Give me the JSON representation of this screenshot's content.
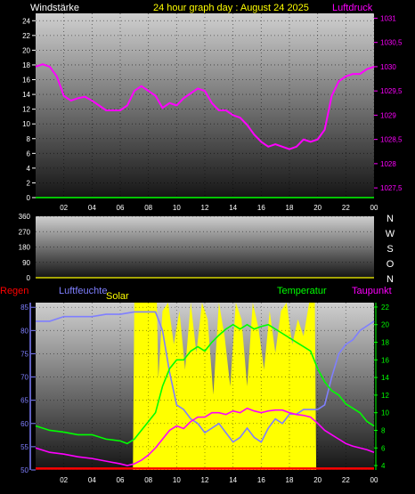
{
  "header": {
    "left": "Windstärke",
    "center": "24 hour graph day : August 24 2025",
    "right": "Luftdruck"
  },
  "colors": {
    "wind": "#ffffff",
    "pressure": "#ff00ff",
    "humidity": "#7f7fff",
    "temperature": "#00ff00",
    "dewpoint": "#ff00ff",
    "rain": "#ff0000",
    "solar": "#ffff00",
    "header_center": "#ffff00",
    "axis": "#000000"
  },
  "chart_data": [
    {
      "type": "line",
      "id": "wind_pressure",
      "x_tick_labels": [
        "02",
        "04",
        "06",
        "08",
        "10",
        "12",
        "14",
        "16",
        "18",
        "20",
        "22",
        "00"
      ],
      "x_range": [
        0,
        24
      ],
      "ylabel_left": "Windstärke",
      "ylim_left": [
        0,
        25
      ],
      "y_ticks_left": [
        "24",
        "22",
        "20",
        "18",
        "16",
        "14",
        "12",
        "10",
        "8",
        "6",
        "4",
        "2",
        "0"
      ],
      "ylabel_right": "Luftdruck",
      "ylim_right": [
        1027.3,
        1031.1
      ],
      "y_ticks_right": [
        {
          "v": 1031,
          "t": "1031"
        },
        {
          "v": 1030.5,
          "t": "1030,5"
        },
        {
          "v": 1030,
          "t": "1030"
        },
        {
          "v": 1029.5,
          "t": "1029,5"
        },
        {
          "v": 1029,
          "t": "1029"
        },
        {
          "v": 1028.5,
          "t": "1028,5"
        },
        {
          "v": 1028,
          "t": "1028"
        },
        {
          "v": 1027.5,
          "t": "1027,5"
        }
      ],
      "series": [
        {
          "axis": "right",
          "color": "#ff00ff",
          "x": [
            0,
            0.5,
            1,
            1.5,
            2,
            2.5,
            3,
            3.5,
            4,
            4.5,
            5,
            5.5,
            6,
            6.5,
            7,
            7.5,
            8,
            8.5,
            9,
            9.5,
            10,
            10.5,
            11,
            11.5,
            12,
            12.5,
            13,
            13.5,
            14,
            14.5,
            15,
            15.5,
            16,
            16.5,
            17,
            17.5,
            18,
            18.5,
            19,
            19.5,
            20,
            20.5,
            21,
            21.5,
            22,
            22.5,
            23,
            23.5,
            24
          ],
          "y": [
            1030,
            1030.05,
            1030,
            1029.8,
            1029.4,
            1029.3,
            1029.35,
            1029.38,
            1029.3,
            1029.2,
            1029.1,
            1029.1,
            1029.1,
            1029.2,
            1029.5,
            1029.6,
            1029.5,
            1029.4,
            1029.15,
            1029.25,
            1029.2,
            1029.35,
            1029.45,
            1029.55,
            1029.5,
            1029.25,
            1029.1,
            1029.1,
            1029,
            1028.95,
            1028.8,
            1028.6,
            1028.45,
            1028.35,
            1028.4,
            1028.35,
            1028.3,
            1028.35,
            1028.5,
            1028.45,
            1028.5,
            1028.7,
            1029.4,
            1029.7,
            1029.8,
            1029.85,
            1029.85,
            1029.95,
            1030
          ]
        },
        {
          "axis": "left",
          "color": "#00ff00",
          "x": [
            0,
            24
          ],
          "y": [
            0,
            0
          ]
        }
      ]
    },
    {
      "type": "line",
      "id": "wind_direction",
      "ylim": [
        0,
        360
      ],
      "y_ticks": [
        "360",
        "270",
        "180",
        "90",
        "0"
      ],
      "direction_labels": [
        "N",
        "W",
        "S",
        "O",
        "N"
      ],
      "series": []
    },
    {
      "type": "line",
      "id": "humidity_temperature",
      "ylabel_left": "Luftfeuchte",
      "label_left_outer": "Regen",
      "label_solar": "Solar",
      "ylabel_right": "Temperatur",
      "ylabel_right2": "Taupunkt",
      "ylim_left": [
        50,
        86
      ],
      "y_ticks_left": [
        "85",
        "80",
        "75",
        "70",
        "65",
        "60",
        "55",
        "50"
      ],
      "ylim_right": [
        3.5,
        22.5
      ],
      "y_ticks_right": [
        "22",
        "20",
        "18",
        "16",
        "14",
        "12",
        "10",
        "8",
        "6",
        "4"
      ],
      "series": [
        {
          "name": "Luftfeuchte",
          "axis": "left",
          "color": "#7f7fff",
          "x": [
            0,
            1,
            2,
            3,
            4,
            5,
            6,
            7,
            7.5,
            8,
            8.5,
            9,
            9.5,
            10,
            10.5,
            11,
            11.5,
            12,
            12.5,
            13,
            13.5,
            14,
            14.5,
            15,
            15.5,
            16,
            16.5,
            17,
            17.5,
            18,
            18.5,
            19,
            19.5,
            20,
            20.5,
            21,
            21.5,
            22,
            22.5,
            23,
            23.5,
            24
          ],
          "y": [
            82,
            82,
            83,
            83,
            83,
            83.5,
            83.5,
            84,
            84,
            84,
            84,
            80,
            71,
            64,
            63,
            61,
            60,
            58,
            59,
            60,
            58,
            56,
            57,
            59,
            57,
            56,
            59,
            61,
            60,
            62,
            62,
            63,
            63,
            63,
            64,
            70,
            75,
            77,
            78,
            80,
            81,
            82
          ]
        },
        {
          "name": "Temperatur",
          "axis": "right",
          "color": "#00ff00",
          "x": [
            0,
            1,
            2,
            3,
            4,
            5,
            6,
            6.5,
            7,
            7.5,
            8,
            8.5,
            9,
            9.5,
            10,
            10.5,
            11,
            11.5,
            12,
            12.5,
            13,
            13.5,
            14,
            14.5,
            15,
            15.5,
            16,
            16.5,
            17,
            17.5,
            18,
            18.5,
            19,
            19.5,
            20,
            20.5,
            21,
            21.5,
            22,
            22.5,
            23,
            23.5,
            24
          ],
          "y": [
            8.5,
            8,
            7.8,
            7.5,
            7.5,
            7,
            6.8,
            6.5,
            7,
            8,
            9,
            10,
            13,
            15,
            16,
            16,
            17,
            17.5,
            17,
            18,
            18.8,
            19.5,
            20,
            19.5,
            20,
            19.5,
            19.8,
            20,
            19.5,
            19,
            18.5,
            18,
            17.5,
            17,
            15,
            13.5,
            12.5,
            12,
            11,
            10.5,
            10,
            9,
            8.5
          ]
        },
        {
          "name": "Taupunkt",
          "axis": "right",
          "color": "#ff00ff",
          "x": [
            0,
            1,
            2,
            3,
            4,
            5,
            6,
            6.5,
            7,
            7.5,
            8,
            8.5,
            9,
            9.5,
            10,
            10.5,
            11,
            11.5,
            12,
            12.5,
            13,
            13.5,
            14,
            14.5,
            15,
            15.5,
            16,
            16.5,
            17,
            17.5,
            18,
            18.5,
            19,
            19.5,
            20,
            20.5,
            21,
            21.5,
            22,
            22.5,
            23,
            23.5,
            24
          ],
          "y": [
            6,
            5.5,
            5.3,
            5,
            4.8,
            4.5,
            4.2,
            4,
            4.2,
            4.6,
            5.2,
            6,
            7,
            8,
            8.5,
            8.2,
            9,
            9.5,
            9.5,
            10,
            10,
            9.8,
            10.2,
            10,
            10.5,
            10.2,
            10,
            10.2,
            10.3,
            10.3,
            10,
            9.8,
            9.7,
            9.5,
            8.8,
            8,
            7.5,
            7,
            6.5,
            6.2,
            6,
            5.8,
            5.5
          ]
        },
        {
          "name": "Solar",
          "type": "area",
          "color": "#ffff00",
          "x": [
            6.9,
            7.0,
            8.6,
            8.7,
            9.0,
            9.4,
            9.8,
            10.2,
            10.6,
            11.0,
            11.4,
            11.8,
            12.2,
            12.6,
            13.0,
            13.4,
            13.8,
            14.2,
            14.6,
            15.0,
            15.4,
            15.8,
            16.2,
            16.6,
            17.0,
            17.4,
            17.8,
            18.2,
            18.6,
            19.0,
            19.4,
            19.8,
            19.9
          ],
          "y": [
            0,
            1,
            1,
            0.55,
            0.95,
            1,
            0.75,
            0.95,
            0.6,
            1,
            0.7,
            1,
            0.9,
            0.45,
            1,
            0.8,
            0.5,
            1,
            0.9,
            0.5,
            1,
            0.85,
            0.6,
            0.95,
            0.7,
            0.95,
            1,
            0.75,
            0.9,
            0.8,
            1,
            1,
            0
          ]
        },
        {
          "name": "Regen",
          "axis": "left",
          "color": "#ff0000",
          "x": [
            0,
            24
          ],
          "y": [
            50.3,
            50.3
          ]
        }
      ]
    }
  ]
}
